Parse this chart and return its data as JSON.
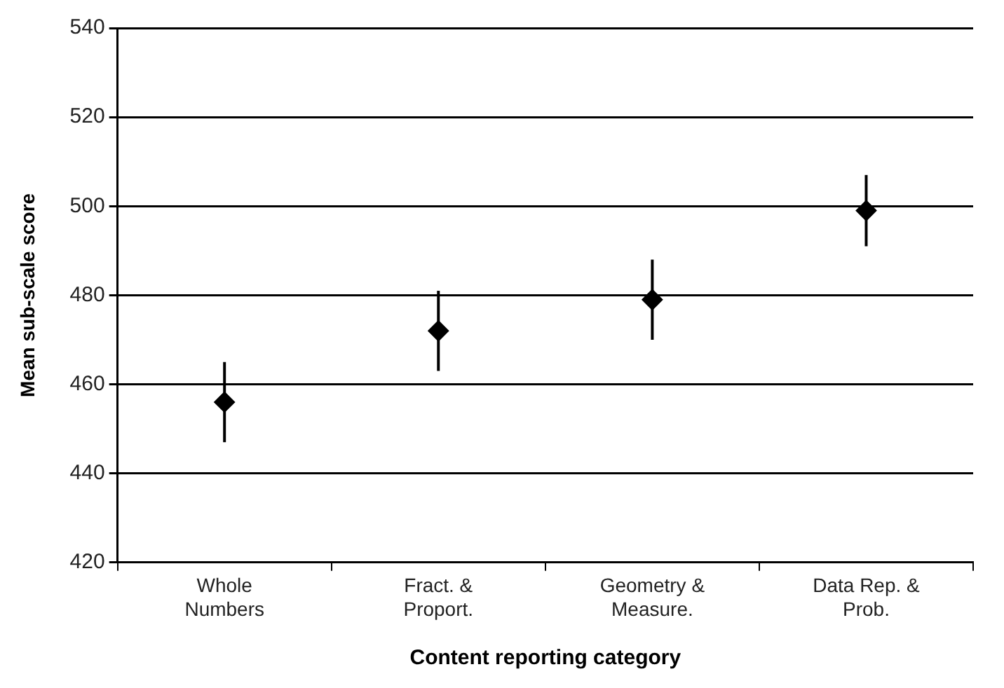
{
  "chart_data": {
    "type": "scatter",
    "xlabel": "Content reporting category",
    "ylabel": "Mean sub-scale score",
    "categories": [
      [
        "Whole",
        "Numbers"
      ],
      [
        "Fract. &",
        "Proport."
      ],
      [
        "Geometry &",
        "Measure."
      ],
      [
        "Data Rep. &",
        "Prob."
      ]
    ],
    "values": [
      456,
      472,
      479,
      499
    ],
    "errors": [
      9,
      9,
      9,
      8
    ],
    "color": "#000000",
    "marker": "diamond",
    "ylim": [
      420,
      540
    ],
    "yticks": [
      420,
      440,
      460,
      480,
      500,
      520,
      540
    ],
    "grid": "y"
  }
}
